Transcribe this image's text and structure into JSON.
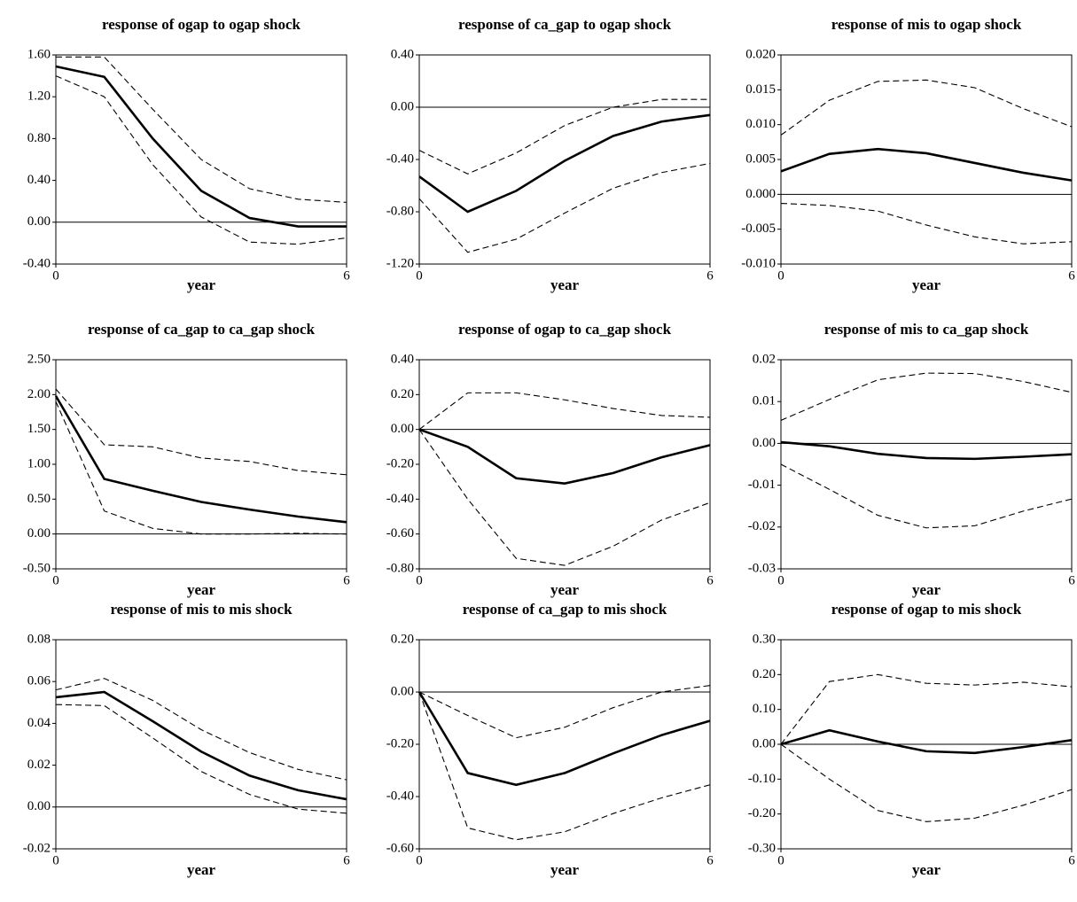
{
  "chart_data": [
    {
      "type": "line",
      "title": "response of ogap to ogap shock",
      "xlabel": "year",
      "x": [
        0,
        1,
        2,
        3,
        4,
        5,
        6
      ],
      "xlim": [
        0,
        6
      ],
      "xticks": [
        0,
        6
      ],
      "ylim": [
        -0.4,
        1.6
      ],
      "yticks": [
        {
          "value": -0.4,
          "label": "-0.40"
        },
        {
          "value": 0,
          "label": "0.00"
        },
        {
          "value": 0.4,
          "label": "0.40"
        },
        {
          "value": 0.8,
          "label": "0.80"
        },
        {
          "value": 1.2,
          "label": "1.20"
        },
        {
          "value": 1.6,
          "label": "1.60"
        }
      ],
      "zero_line": true,
      "series": [
        {
          "color": "#000000",
          "style": "solid",
          "values": [
            1.49,
            1.39,
            0.8,
            0.3,
            0.04,
            -0.04,
            -0.04
          ]
        },
        {
          "color": "#000000",
          "style": "dashed",
          "values": [
            1.58,
            1.58,
            1.08,
            0.6,
            0.32,
            0.22,
            0.19
          ]
        },
        {
          "color": "#000000",
          "style": "dashed",
          "values": [
            1.4,
            1.2,
            0.55,
            0.05,
            -0.19,
            -0.21,
            -0.15
          ]
        }
      ]
    },
    {
      "type": "line",
      "title": "response of ca_gap to ogap shock",
      "xlabel": "year",
      "x": [
        0,
        1,
        2,
        3,
        4,
        5,
        6
      ],
      "xlim": [
        0,
        6
      ],
      "xticks": [
        0,
        6
      ],
      "ylim": [
        -1.2,
        0.4
      ],
      "yticks": [
        {
          "value": -1.2,
          "label": "-1.20"
        },
        {
          "value": -0.8,
          "label": "-0.80"
        },
        {
          "value": -0.4,
          "label": "-0.40"
        },
        {
          "value": 0,
          "label": "0.00"
        },
        {
          "value": 0.4,
          "label": "0.40"
        }
      ],
      "zero_line": true,
      "series": [
        {
          "color": "#000000",
          "style": "solid",
          "values": [
            -0.53,
            -0.8,
            -0.64,
            -0.41,
            -0.22,
            -0.11,
            -0.06
          ]
        },
        {
          "color": "#000000",
          "style": "dashed",
          "values": [
            -0.33,
            -0.51,
            -0.35,
            -0.14,
            0.0,
            0.06,
            0.06
          ]
        },
        {
          "color": "#000000",
          "style": "dashed",
          "values": [
            -0.7,
            -1.11,
            -1.01,
            -0.81,
            -0.62,
            -0.5,
            -0.43
          ]
        }
      ]
    },
    {
      "type": "line",
      "title": "response of mis to ogap shock",
      "xlabel": "year",
      "x": [
        0,
        1,
        2,
        3,
        4,
        5,
        6
      ],
      "xlim": [
        0,
        6
      ],
      "xticks": [
        0,
        6
      ],
      "ylim": [
        -0.01,
        0.02
      ],
      "yticks": [
        {
          "value": -0.01,
          "label": "-0.010"
        },
        {
          "value": -0.005,
          "label": "-0.005"
        },
        {
          "value": 0,
          "label": "0.000"
        },
        {
          "value": 0.005,
          "label": "0.005"
        },
        {
          "value": 0.01,
          "label": "0.010"
        },
        {
          "value": 0.015,
          "label": "0.015"
        },
        {
          "value": 0.02,
          "label": "0.020"
        }
      ],
      "zero_line": true,
      "series": [
        {
          "color": "#000000",
          "style": "solid",
          "values": [
            0.0033,
            0.0058,
            0.0065,
            0.0059,
            0.0045,
            0.0031,
            0.002
          ]
        },
        {
          "color": "#000000",
          "style": "dashed",
          "values": [
            0.0085,
            0.0135,
            0.0162,
            0.0164,
            0.0153,
            0.0123,
            0.0097
          ]
        },
        {
          "color": "#000000",
          "style": "dashed",
          "values": [
            -0.0013,
            -0.0016,
            -0.0024,
            -0.0044,
            -0.0061,
            -0.0071,
            -0.0068
          ]
        }
      ]
    },
    {
      "type": "line",
      "title": "response of ca_gap to ca_gap shock",
      "xlabel": "year",
      "x": [
        0,
        1,
        2,
        3,
        4,
        5,
        6
      ],
      "xlim": [
        0,
        6
      ],
      "xticks": [
        0,
        6
      ],
      "ylim": [
        -0.5,
        2.5
      ],
      "yticks": [
        {
          "value": -0.5,
          "label": "-0.50"
        },
        {
          "value": 0,
          "label": "0.00"
        },
        {
          "value": 0.5,
          "label": "0.50"
        },
        {
          "value": 1,
          "label": "1.00"
        },
        {
          "value": 1.5,
          "label": "1.50"
        },
        {
          "value": 2,
          "label": "2.00"
        },
        {
          "value": 2.5,
          "label": "2.50"
        }
      ],
      "zero_line": true,
      "series": [
        {
          "color": "#000000",
          "style": "solid",
          "values": [
            1.98,
            0.79,
            0.62,
            0.46,
            0.35,
            0.25,
            0.17
          ]
        },
        {
          "color": "#000000",
          "style": "dashed",
          "values": [
            2.08,
            1.28,
            1.25,
            1.09,
            1.04,
            0.91,
            0.85
          ]
        },
        {
          "color": "#000000",
          "style": "dashed",
          "values": [
            1.9,
            0.33,
            0.08,
            0.0,
            0.0,
            0.01,
            0.0
          ]
        }
      ]
    },
    {
      "type": "line",
      "title": "response of ogap to ca_gap shock",
      "xlabel": "year",
      "x": [
        0,
        1,
        2,
        3,
        4,
        5,
        6
      ],
      "xlim": [
        0,
        6
      ],
      "xticks": [
        0,
        6
      ],
      "ylim": [
        -0.8,
        0.4
      ],
      "yticks": [
        {
          "value": -0.8,
          "label": "-0.80"
        },
        {
          "value": -0.6,
          "label": "-0.60"
        },
        {
          "value": -0.4,
          "label": "-0.40"
        },
        {
          "value": -0.2,
          "label": "-0.20"
        },
        {
          "value": 0,
          "label": "0.00"
        },
        {
          "value": 0.2,
          "label": "0.20"
        },
        {
          "value": 0.4,
          "label": "0.40"
        }
      ],
      "zero_line": true,
      "series": [
        {
          "color": "#000000",
          "style": "solid",
          "values": [
            0,
            -0.1,
            -0.28,
            -0.31,
            -0.25,
            -0.16,
            -0.09
          ]
        },
        {
          "color": "#000000",
          "style": "dashed",
          "values": [
            0,
            0.21,
            0.21,
            0.17,
            0.12,
            0.08,
            0.07
          ]
        },
        {
          "color": "#000000",
          "style": "dashed",
          "values": [
            0,
            -0.4,
            -0.74,
            -0.78,
            -0.67,
            -0.52,
            -0.42
          ]
        }
      ]
    },
    {
      "type": "line",
      "title": "response of mis to ca_gap shock",
      "xlabel": "year",
      "x": [
        0,
        1,
        2,
        3,
        4,
        5,
        6
      ],
      "xlim": [
        0,
        6
      ],
      "xticks": [
        0,
        6
      ],
      "ylim": [
        -0.03,
        0.02
      ],
      "yticks": [
        {
          "value": -0.03,
          "label": "-0.03"
        },
        {
          "value": -0.02,
          "label": "-0.02"
        },
        {
          "value": -0.01,
          "label": "-0.01"
        },
        {
          "value": 0,
          "label": "0.00"
        },
        {
          "value": 0.01,
          "label": "0.01"
        },
        {
          "value": 0.02,
          "label": "0.02"
        }
      ],
      "zero_line": true,
      "series": [
        {
          "color": "#000000",
          "style": "solid",
          "values": [
            0.0003,
            -0.0007,
            -0.0025,
            -0.0035,
            -0.0037,
            -0.0032,
            -0.0026
          ]
        },
        {
          "color": "#000000",
          "style": "dashed",
          "values": [
            0.0055,
            0.0105,
            0.0152,
            0.0168,
            0.0167,
            0.0148,
            0.0122
          ]
        },
        {
          "color": "#000000",
          "style": "dashed",
          "values": [
            -0.005,
            -0.011,
            -0.0172,
            -0.0202,
            -0.0197,
            -0.0162,
            -0.0133
          ]
        }
      ]
    },
    {
      "type": "line",
      "title": "response of mis to mis shock",
      "xlabel": "year",
      "x": [
        0,
        1,
        2,
        3,
        4,
        5,
        6
      ],
      "xlim": [
        0,
        6
      ],
      "xticks": [
        0,
        6
      ],
      "ylim": [
        -0.02,
        0.08
      ],
      "yticks": [
        {
          "value": -0.02,
          "label": "-0.02"
        },
        {
          "value": 0,
          "label": "0.00"
        },
        {
          "value": 0.02,
          "label": "0.02"
        },
        {
          "value": 0.04,
          "label": "0.04"
        },
        {
          "value": 0.06,
          "label": "0.06"
        },
        {
          "value": 0.08,
          "label": "0.08"
        }
      ],
      "zero_line": true,
      "series": [
        {
          "color": "#000000",
          "style": "solid",
          "values": [
            0.0525,
            0.055,
            0.041,
            0.0265,
            0.015,
            0.008,
            0.0037
          ]
        },
        {
          "color": "#000000",
          "style": "dashed",
          "values": [
            0.056,
            0.0615,
            0.051,
            0.037,
            0.026,
            0.018,
            0.013
          ]
        },
        {
          "color": "#000000",
          "style": "dashed",
          "values": [
            0.049,
            0.0485,
            0.033,
            0.017,
            0.006,
            -0.001,
            -0.003
          ]
        }
      ]
    },
    {
      "type": "line",
      "title": "response of ca_gap to mis shock",
      "xlabel": "year",
      "x": [
        0,
        1,
        2,
        3,
        4,
        5,
        6
      ],
      "xlim": [
        0,
        6
      ],
      "xticks": [
        0,
        6
      ],
      "ylim": [
        -0.6,
        0.2
      ],
      "yticks": [
        {
          "value": -0.6,
          "label": "-0.60"
        },
        {
          "value": -0.4,
          "label": "-0.40"
        },
        {
          "value": -0.2,
          "label": "-0.20"
        },
        {
          "value": 0,
          "label": "0.00"
        },
        {
          "value": 0.2,
          "label": "0.20"
        }
      ],
      "zero_line": true,
      "series": [
        {
          "color": "#000000",
          "style": "solid",
          "values": [
            0,
            -0.31,
            -0.355,
            -0.31,
            -0.235,
            -0.165,
            -0.11
          ]
        },
        {
          "color": "#000000",
          "style": "dashed",
          "values": [
            0,
            -0.09,
            -0.175,
            -0.135,
            -0.06,
            0.0,
            0.025
          ]
        },
        {
          "color": "#000000",
          "style": "dashed",
          "values": [
            0,
            -0.52,
            -0.565,
            -0.535,
            -0.465,
            -0.405,
            -0.355
          ]
        }
      ]
    },
    {
      "type": "line",
      "title": "response of ogap to mis shock",
      "xlabel": "year",
      "x": [
        0,
        1,
        2,
        3,
        4,
        5,
        6
      ],
      "xlim": [
        0,
        6
      ],
      "xticks": [
        0,
        6
      ],
      "ylim": [
        -0.3,
        0.3
      ],
      "yticks": [
        {
          "value": -0.3,
          "label": "-0.30"
        },
        {
          "value": -0.2,
          "label": "-0.20"
        },
        {
          "value": -0.1,
          "label": "-0.10"
        },
        {
          "value": 0,
          "label": "0.00"
        },
        {
          "value": 0.1,
          "label": "0.10"
        },
        {
          "value": 0.2,
          "label": "0.20"
        },
        {
          "value": 0.3,
          "label": "0.30"
        }
      ],
      "zero_line": true,
      "series": [
        {
          "color": "#000000",
          "style": "solid",
          "values": [
            0,
            0.04,
            0.008,
            -0.02,
            -0.025,
            -0.008,
            0.012
          ]
        },
        {
          "color": "#000000",
          "style": "dashed",
          "values": [
            0,
            0.18,
            0.2,
            0.175,
            0.17,
            0.178,
            0.165
          ]
        },
        {
          "color": "#000000",
          "style": "dashed",
          "values": [
            0,
            -0.1,
            -0.19,
            -0.222,
            -0.212,
            -0.175,
            -0.13
          ]
        }
      ]
    }
  ]
}
